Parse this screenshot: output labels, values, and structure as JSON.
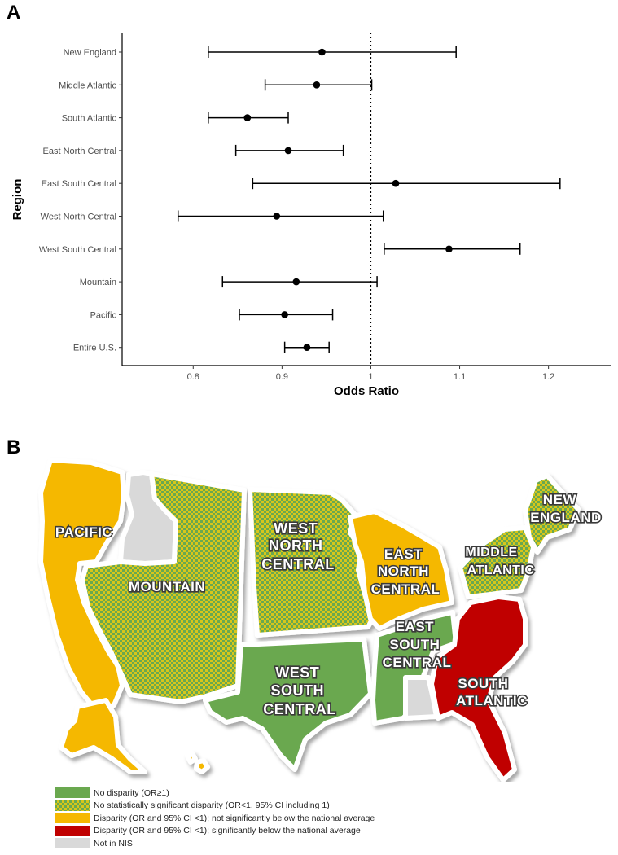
{
  "panel_a_letter": "A",
  "panel_b_letter": "B",
  "chart_data": {
    "type": "forest",
    "ylabel": "Region",
    "xlabel": "Odds Ratio",
    "xlim": [
      0.72,
      1.27
    ],
    "xticks": [
      0.8,
      0.9,
      1,
      1.1,
      1.2
    ],
    "xtick_labels": [
      "0.8",
      "0.9",
      "1",
      "1.1",
      "1.2"
    ],
    "reference_line": 1,
    "categories": [
      "New England",
      "Middle Atlantic",
      "South Atlantic",
      "East North Central",
      "East South Central",
      "West North Central",
      "West South Central",
      "Mountain",
      "Pacific",
      "Entire U.S."
    ],
    "or": [
      0.945,
      0.939,
      0.861,
      0.907,
      1.028,
      0.894,
      1.088,
      0.916,
      0.903,
      0.928
    ],
    "ci_low": [
      0.817,
      0.881,
      0.817,
      0.848,
      0.867,
      0.783,
      1.015,
      0.833,
      0.852,
      0.903
    ],
    "ci_high": [
      1.096,
      1.001,
      0.907,
      0.969,
      1.213,
      1.014,
      1.168,
      1.007,
      0.957,
      0.953
    ]
  },
  "map": {
    "colors": {
      "no_disparity": "#6aa84f",
      "not_significant_green": "#6aa84f",
      "not_significant_yellow": "#d7c61a",
      "disparity": "#f5b800",
      "significant": "#c00000",
      "not_in_nis": "#d9d9d9"
    },
    "regions": [
      {
        "label_lines": [
          "PACIFIC"
        ],
        "category": "disparity"
      },
      {
        "label_lines": [
          "MOUNTAIN"
        ],
        "category": "not_significant"
      },
      {
        "label_lines": [
          "WEST",
          "NORTH",
          "CENTRAL"
        ],
        "category": "not_significant"
      },
      {
        "label_lines": [
          "EAST",
          "NORTH",
          "CENTRAL"
        ],
        "category": "disparity"
      },
      {
        "label_lines": [
          "NEW",
          "ENGLAND"
        ],
        "category": "not_significant"
      },
      {
        "label_lines": [
          "MIDDLE",
          "ATLANTIC"
        ],
        "category": "not_significant"
      },
      {
        "label_lines": [
          "EAST",
          "SOUTH",
          "CENTRAL"
        ],
        "category": "no_disparity"
      },
      {
        "label_lines": [
          "WEST",
          "SOUTH",
          "CENTRAL"
        ],
        "category": "no_disparity"
      },
      {
        "label_lines": [
          "SOUTH",
          "ATLANTIC"
        ],
        "category": "significant"
      }
    ],
    "legend": [
      {
        "key": "no_disparity",
        "label": "No disparity (OR≥1)"
      },
      {
        "key": "not_significant",
        "label": "No statistically significant disparity (OR<1, 95% CI including 1)"
      },
      {
        "key": "disparity",
        "label": "Disparity (OR and 95% CI <1); not significantly below the national average"
      },
      {
        "key": "significant",
        "label": "Disparity (OR and 95% CI <1); significantly below the national average"
      },
      {
        "key": "not_in_nis",
        "label": "Not in NIS"
      }
    ]
  }
}
